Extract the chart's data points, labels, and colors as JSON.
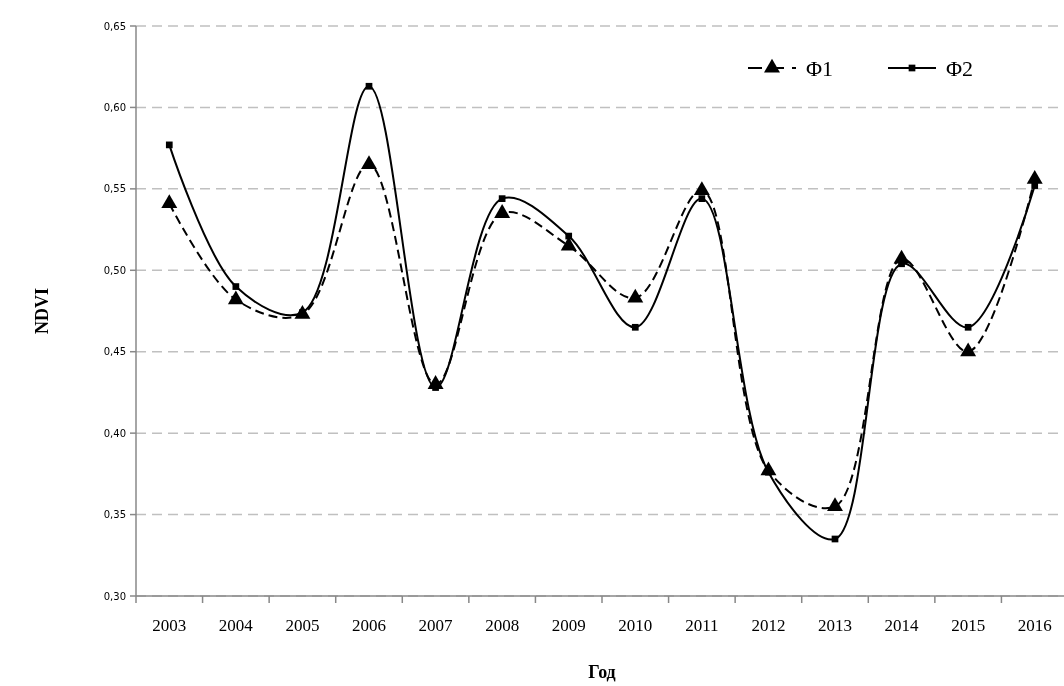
{
  "chart_data": {
    "type": "line",
    "xlabel": "Год",
    "ylabel": "NDVI",
    "categories": [
      "2003",
      "2004",
      "2005",
      "2006",
      "2007",
      "2008",
      "2009",
      "2010",
      "2011",
      "2012",
      "2013",
      "2014",
      "2015",
      "2016"
    ],
    "series": [
      {
        "name": "Φ1",
        "color": "#000000",
        "marker": "triangle",
        "line_style": "dashed",
        "values": [
          0.541,
          0.482,
          0.473,
          0.565,
          0.43,
          0.535,
          0.515,
          0.483,
          0.549,
          0.377,
          0.355,
          0.507,
          0.45,
          0.556
        ]
      },
      {
        "name": "Φ2",
        "color": "#000000",
        "marker": "square",
        "line_style": "solid",
        "values": [
          0.577,
          0.49,
          0.474,
          0.613,
          0.428,
          0.544,
          0.521,
          0.465,
          0.544,
          0.376,
          0.335,
          0.504,
          0.465,
          0.552
        ]
      }
    ],
    "ylim": [
      0.3,
      0.65
    ],
    "yticks": [
      {
        "value": 0.3,
        "label": "0,30"
      },
      {
        "value": 0.35,
        "label": "0,35"
      },
      {
        "value": 0.4,
        "label": "0,40"
      },
      {
        "value": 0.45,
        "label": "0,45"
      },
      {
        "value": 0.5,
        "label": "0,50"
      },
      {
        "value": 0.55,
        "label": "0,55"
      },
      {
        "value": 0.6,
        "label": "0,60"
      },
      {
        "value": 0.65,
        "label": "0,65"
      }
    ],
    "grid": "y",
    "legend": "top right"
  }
}
